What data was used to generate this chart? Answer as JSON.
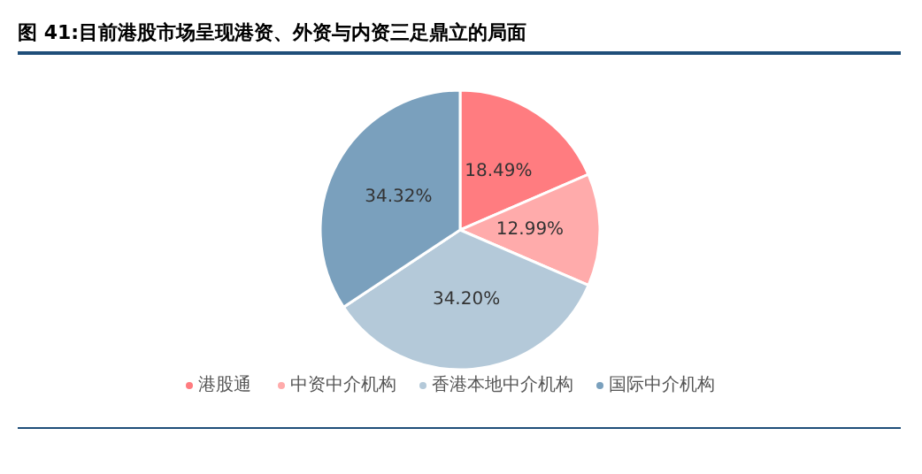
{
  "chart_data": {
    "type": "pie",
    "title": "图 41:目前港股市场呈现港资、外资与内资三足鼎立的局面",
    "categories": [
      "港股通",
      "中资中介机构",
      "香港本地中介机构",
      "国际中介机构"
    ],
    "values": [
      18.49,
      12.99,
      34.2,
      34.32
    ],
    "colors": [
      "#ff7c80",
      "#ffabab",
      "#b4c9d9",
      "#7aa0bd"
    ],
    "value_labels": [
      "18.49%",
      "12.99%",
      "34.20%",
      "34.32%"
    ],
    "legend": "bottom"
  }
}
